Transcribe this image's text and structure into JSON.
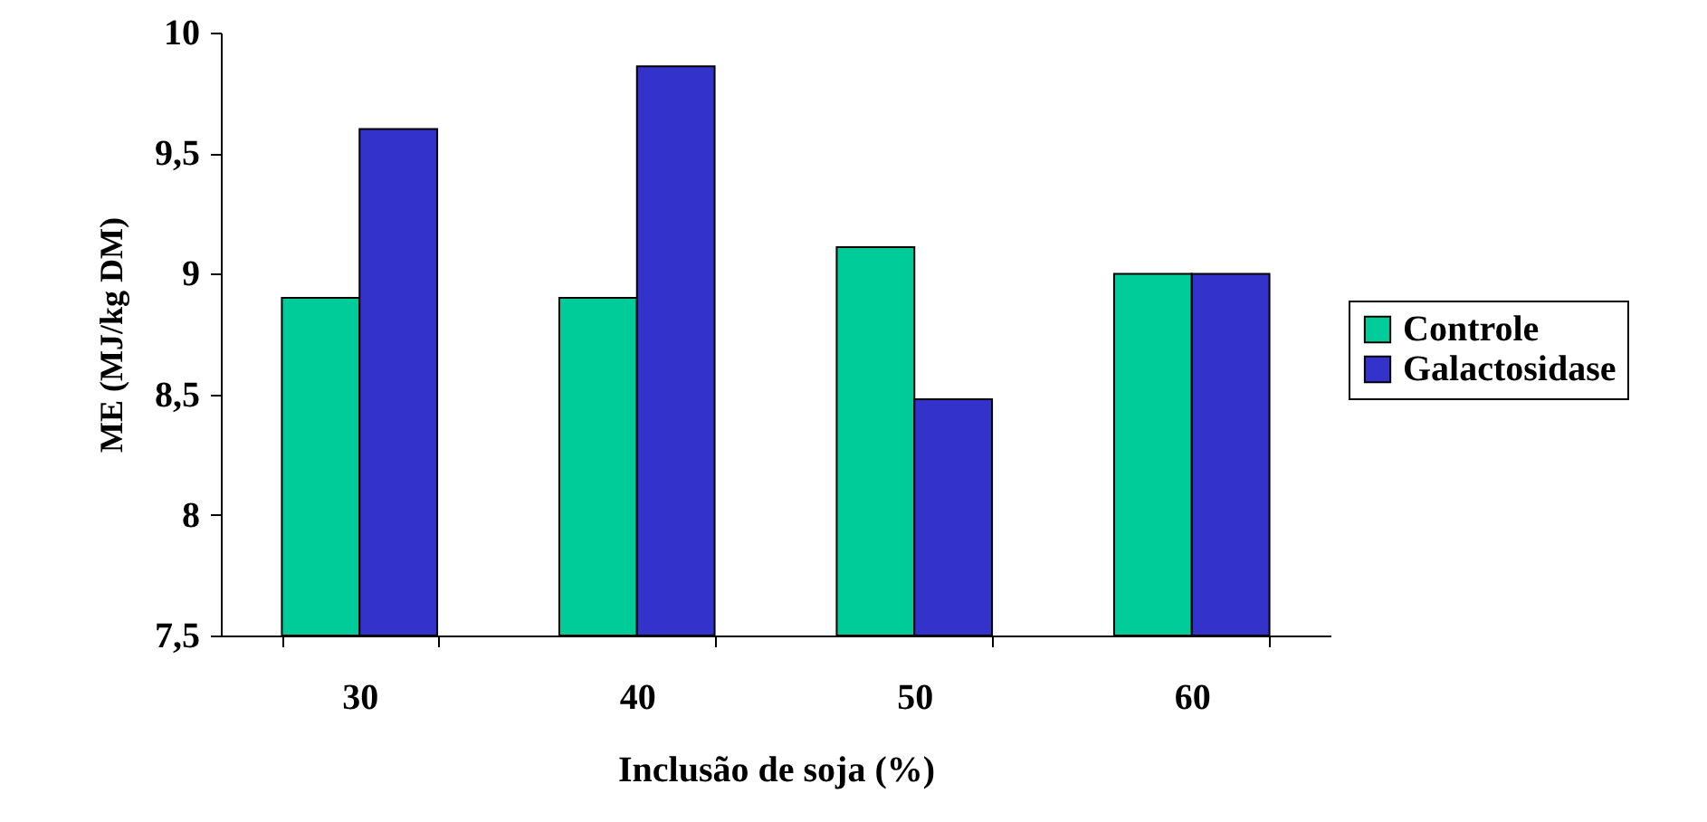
{
  "chart_data": {
    "type": "bar",
    "xlabel": "Inclusão de soja (%)",
    "ylabel": "ME (MJ/kg DM)",
    "categories": [
      "30",
      "40",
      "50",
      "60"
    ],
    "series": [
      {
        "name": "Controle",
        "color": "#00cc99",
        "values": [
          8.9,
          8.9,
          9.11,
          9.0
        ]
      },
      {
        "name": "Galactosidase",
        "color": "#3333cc",
        "values": [
          9.6,
          9.86,
          8.48,
          9.0
        ]
      }
    ],
    "ylim": [
      7.5,
      10
    ],
    "yticks": [
      {
        "value": 7.5,
        "label": "7,5"
      },
      8,
      {
        "value": 8.5,
        "label": "8,5"
      },
      9,
      {
        "value": 9.5,
        "label": "9,5"
      },
      10
    ],
    "grid": false,
    "legend": "right"
  }
}
